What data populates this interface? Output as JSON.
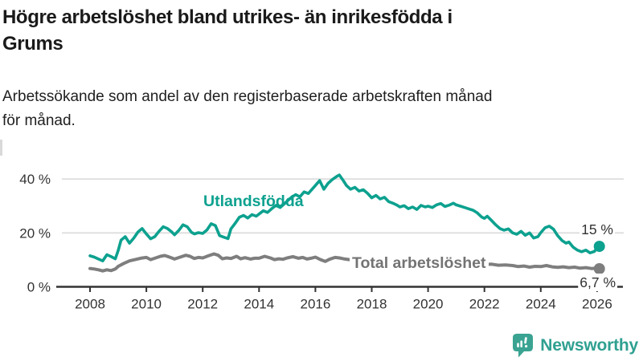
{
  "header": {
    "title_lines": [
      "Högre arbetslöshet bland utrikes- än inrikesfödda i",
      "Grums"
    ],
    "subtitle_lines": [
      "Arbetssökande som andel av den registerbaserade arbetskraften månad",
      "för månad."
    ]
  },
  "chart_data": {
    "type": "line",
    "title": "Högre arbetslöshet bland utrikes- än inrikesfödda i Grums",
    "subtitle": "Arbetssökande som andel av den registerbaserade arbetskraften månad för månad.",
    "grid": "horizontal-on",
    "legend": "inline-series-labels",
    "x_axis": {
      "tick_values": [
        2008,
        2010,
        2012,
        2014,
        2016,
        2018,
        2020,
        2022,
        2024,
        2026
      ],
      "tick_labels": [
        "2008",
        "2010",
        "2012",
        "2014",
        "2016",
        "2018",
        "2020",
        "2022",
        "2024",
        "2026"
      ],
      "range": [
        2007.8,
        2026.5
      ]
    },
    "y_axis": {
      "tick_values": [
        0,
        20,
        40
      ],
      "tick_labels": [
        "0 %",
        "20 %",
        "40 %"
      ],
      "range": [
        0,
        44
      ],
      "unit": "%"
    },
    "colors": {
      "axis": "#333333",
      "grid": "#dddddd",
      "annotation_text": "#333333"
    },
    "series": [
      {
        "name": "Total arbetslöshet",
        "color": "#7e7e7e",
        "label_color": "#737373",
        "end_label": "6,7 %",
        "end_value": 6.7,
        "points": [
          [
            2008.0,
            6.8
          ],
          [
            2008.15,
            6.6
          ],
          [
            2008.3,
            6.3
          ],
          [
            2008.45,
            5.9
          ],
          [
            2008.6,
            6.3
          ],
          [
            2008.75,
            6.0
          ],
          [
            2008.9,
            6.6
          ],
          [
            2009.0,
            7.6
          ],
          [
            2009.2,
            8.7
          ],
          [
            2009.4,
            9.6
          ],
          [
            2009.6,
            10.1
          ],
          [
            2009.8,
            10.6
          ],
          [
            2010.0,
            10.9
          ],
          [
            2010.15,
            10.1
          ],
          [
            2010.3,
            10.6
          ],
          [
            2010.5,
            11.3
          ],
          [
            2010.65,
            11.6
          ],
          [
            2010.8,
            11.1
          ],
          [
            2010.9,
            10.7
          ],
          [
            2011.0,
            10.3
          ],
          [
            2011.2,
            11.0
          ],
          [
            2011.4,
            11.7
          ],
          [
            2011.55,
            11.3
          ],
          [
            2011.7,
            10.5
          ],
          [
            2011.85,
            10.9
          ],
          [
            2012.0,
            10.7
          ],
          [
            2012.2,
            11.5
          ],
          [
            2012.4,
            12.2
          ],
          [
            2012.55,
            11.7
          ],
          [
            2012.7,
            10.4
          ],
          [
            2012.85,
            10.7
          ],
          [
            2013.0,
            10.5
          ],
          [
            2013.2,
            11.3
          ],
          [
            2013.35,
            10.4
          ],
          [
            2013.5,
            10.8
          ],
          [
            2013.7,
            10.3
          ],
          [
            2013.85,
            10.6
          ],
          [
            2014.0,
            10.6
          ],
          [
            2014.2,
            11.3
          ],
          [
            2014.4,
            10.7
          ],
          [
            2014.55,
            10.1
          ],
          [
            2014.7,
            10.4
          ],
          [
            2014.85,
            10.2
          ],
          [
            2015.0,
            10.7
          ],
          [
            2015.2,
            11.2
          ],
          [
            2015.4,
            10.6
          ],
          [
            2015.55,
            10.9
          ],
          [
            2015.7,
            10.3
          ],
          [
            2015.85,
            10.6
          ],
          [
            2016.0,
            11.0
          ],
          [
            2016.2,
            10.0
          ],
          [
            2016.35,
            9.4
          ],
          [
            2016.5,
            10.2
          ],
          [
            2016.7,
            10.9
          ],
          [
            2016.85,
            10.7
          ],
          [
            2017.0,
            10.4
          ],
          [
            2017.25,
            10.0
          ],
          [
            2017.5,
            10.3
          ],
          [
            2017.75,
            9.8
          ],
          [
            2018.0,
            9.6
          ],
          [
            2018.25,
            9.9
          ],
          [
            2018.5,
            9.4
          ],
          [
            2018.75,
            9.2
          ],
          [
            2019.0,
            9.0
          ],
          [
            2019.25,
            9.3
          ],
          [
            2019.5,
            8.9
          ],
          [
            2019.75,
            9.1
          ],
          [
            2020.0,
            9.2
          ],
          [
            2020.25,
            9.5
          ],
          [
            2020.5,
            9.1
          ],
          [
            2020.75,
            8.9
          ],
          [
            2021.0,
            8.8
          ],
          [
            2021.25,
            8.9
          ],
          [
            2021.5,
            8.6
          ],
          [
            2021.75,
            8.4
          ],
          [
            2022.0,
            8.2
          ],
          [
            2022.25,
            8.4
          ],
          [
            2022.5,
            8.0
          ],
          [
            2022.75,
            8.1
          ],
          [
            2023.0,
            7.9
          ],
          [
            2023.2,
            7.5
          ],
          [
            2023.4,
            7.7
          ],
          [
            2023.6,
            7.3
          ],
          [
            2023.8,
            7.6
          ],
          [
            2024.0,
            7.5
          ],
          [
            2024.2,
            7.9
          ],
          [
            2024.4,
            7.4
          ],
          [
            2024.6,
            7.2
          ],
          [
            2024.8,
            7.4
          ],
          [
            2025.0,
            7.1
          ],
          [
            2025.2,
            7.3
          ],
          [
            2025.4,
            6.9
          ],
          [
            2025.6,
            7.1
          ],
          [
            2025.8,
            6.8
          ],
          [
            2026.0,
            6.9
          ],
          [
            2026.08,
            6.7
          ]
        ]
      },
      {
        "name": "Utlandsfödda",
        "color": "#0da18f",
        "label_color": "#0da18f",
        "end_label": "15 %",
        "end_value": 15,
        "points": [
          [
            2008.0,
            11.5
          ],
          [
            2008.15,
            11.0
          ],
          [
            2008.3,
            10.3
          ],
          [
            2008.45,
            9.6
          ],
          [
            2008.6,
            11.9
          ],
          [
            2008.75,
            11.2
          ],
          [
            2008.9,
            10.4
          ],
          [
            2009.0,
            13.5
          ],
          [
            2009.1,
            17.3
          ],
          [
            2009.25,
            18.6
          ],
          [
            2009.4,
            16.2
          ],
          [
            2009.55,
            18.0
          ],
          [
            2009.7,
            20.3
          ],
          [
            2009.85,
            21.6
          ],
          [
            2010.0,
            19.6
          ],
          [
            2010.15,
            17.8
          ],
          [
            2010.3,
            18.6
          ],
          [
            2010.45,
            20.6
          ],
          [
            2010.6,
            22.3
          ],
          [
            2010.75,
            21.6
          ],
          [
            2010.9,
            20.4
          ],
          [
            2011.0,
            19.3
          ],
          [
            2011.15,
            20.9
          ],
          [
            2011.3,
            23.0
          ],
          [
            2011.45,
            22.3
          ],
          [
            2011.6,
            20.2
          ],
          [
            2011.7,
            19.6
          ],
          [
            2011.85,
            20.1
          ],
          [
            2012.0,
            19.8
          ],
          [
            2012.15,
            21.1
          ],
          [
            2012.3,
            23.4
          ],
          [
            2012.45,
            22.7
          ],
          [
            2012.6,
            19.0
          ],
          [
            2012.75,
            18.4
          ],
          [
            2012.9,
            17.9
          ],
          [
            2013.0,
            21.5
          ],
          [
            2013.15,
            23.5
          ],
          [
            2013.3,
            25.8
          ],
          [
            2013.45,
            26.5
          ],
          [
            2013.6,
            25.5
          ],
          [
            2013.75,
            26.8
          ],
          [
            2013.9,
            26.2
          ],
          [
            2014.0,
            27.0
          ],
          [
            2014.15,
            28.2
          ],
          [
            2014.3,
            27.6
          ],
          [
            2014.45,
            29.0
          ],
          [
            2014.6,
            30.2
          ],
          [
            2014.75,
            29.4
          ],
          [
            2014.9,
            30.8
          ],
          [
            2015.0,
            31.8
          ],
          [
            2015.15,
            33.2
          ],
          [
            2015.3,
            34.2
          ],
          [
            2015.45,
            33.4
          ],
          [
            2015.6,
            35.2
          ],
          [
            2015.75,
            34.6
          ],
          [
            2015.9,
            36.4
          ],
          [
            2016.0,
            37.6
          ],
          [
            2016.15,
            39.4
          ],
          [
            2016.3,
            36.2
          ],
          [
            2016.45,
            38.4
          ],
          [
            2016.6,
            39.8
          ],
          [
            2016.75,
            40.9
          ],
          [
            2016.85,
            41.5
          ],
          [
            2017.0,
            39.3
          ],
          [
            2017.1,
            37.6
          ],
          [
            2017.25,
            36.2
          ],
          [
            2017.4,
            36.9
          ],
          [
            2017.55,
            35.5
          ],
          [
            2017.7,
            36.0
          ],
          [
            2017.85,
            34.7
          ],
          [
            2018.0,
            33.0
          ],
          [
            2018.15,
            33.9
          ],
          [
            2018.3,
            32.6
          ],
          [
            2018.45,
            33.2
          ],
          [
            2018.6,
            31.6
          ],
          [
            2018.75,
            31.0
          ],
          [
            2018.9,
            30.3
          ],
          [
            2019.0,
            29.6
          ],
          [
            2019.15,
            30.1
          ],
          [
            2019.3,
            29.0
          ],
          [
            2019.45,
            29.6
          ],
          [
            2019.6,
            28.7
          ],
          [
            2019.75,
            30.2
          ],
          [
            2019.9,
            29.6
          ],
          [
            2020.0,
            29.9
          ],
          [
            2020.15,
            29.4
          ],
          [
            2020.3,
            30.4
          ],
          [
            2020.45,
            30.9
          ],
          [
            2020.6,
            29.8
          ],
          [
            2020.75,
            30.3
          ],
          [
            2020.9,
            31.0
          ],
          [
            2021.0,
            30.4
          ],
          [
            2021.15,
            29.9
          ],
          [
            2021.3,
            29.4
          ],
          [
            2021.45,
            28.9
          ],
          [
            2021.6,
            28.4
          ],
          [
            2021.75,
            27.4
          ],
          [
            2021.9,
            25.9
          ],
          [
            2022.0,
            25.4
          ],
          [
            2022.1,
            26.2
          ],
          [
            2022.25,
            24.6
          ],
          [
            2022.4,
            23.0
          ],
          [
            2022.55,
            21.6
          ],
          [
            2022.7,
            21.0
          ],
          [
            2022.85,
            21.5
          ],
          [
            2023.0,
            20.0
          ],
          [
            2023.15,
            19.5
          ],
          [
            2023.3,
            20.6
          ],
          [
            2023.45,
            19.1
          ],
          [
            2023.6,
            20.0
          ],
          [
            2023.75,
            18.1
          ],
          [
            2023.9,
            18.6
          ],
          [
            2024.0,
            20.1
          ],
          [
            2024.15,
            21.9
          ],
          [
            2024.3,
            22.5
          ],
          [
            2024.45,
            21.4
          ],
          [
            2024.6,
            19.0
          ],
          [
            2024.75,
            17.2
          ],
          [
            2024.9,
            16.2
          ],
          [
            2025.0,
            16.6
          ],
          [
            2025.15,
            14.7
          ],
          [
            2025.3,
            13.6
          ],
          [
            2025.45,
            13.0
          ],
          [
            2025.6,
            13.6
          ],
          [
            2025.75,
            12.6
          ],
          [
            2025.9,
            13.1
          ],
          [
            2026.0,
            14.4
          ],
          [
            2026.08,
            15.0
          ]
        ]
      }
    ]
  },
  "footer": {
    "brand": "Newsworthy",
    "logo_icon": "bar-chart-speech-bubble-icon",
    "brand_color": "#2fa091"
  }
}
